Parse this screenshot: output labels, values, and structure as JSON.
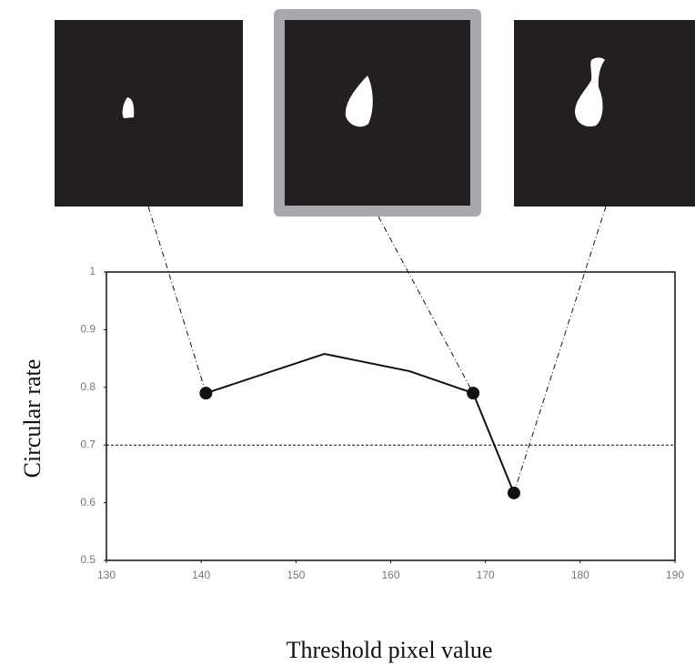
{
  "chart_data": {
    "type": "line",
    "x_label": "Threshold pixel value",
    "y_label": "Circular rate",
    "x": [
      140.5,
      153,
      162,
      168.7,
      173
    ],
    "series": [
      {
        "color": "#111111",
        "style": "line",
        "values": [
          0.79,
          0.858,
          0.828,
          0.79,
          0.617
        ]
      },
      {
        "color": "#111111",
        "style": "markers",
        "values": [
          0.79,
          null,
          null,
          0.79,
          0.617
        ]
      }
    ],
    "threshold": 0.7,
    "xlim": [
      130,
      190
    ],
    "xticks": [
      130,
      140,
      150,
      160,
      170,
      180,
      190
    ],
    "ylim": [
      0.5,
      1
    ],
    "yticks": [
      0.5,
      0.6,
      0.7,
      0.8,
      0.9,
      1
    ]
  }
}
